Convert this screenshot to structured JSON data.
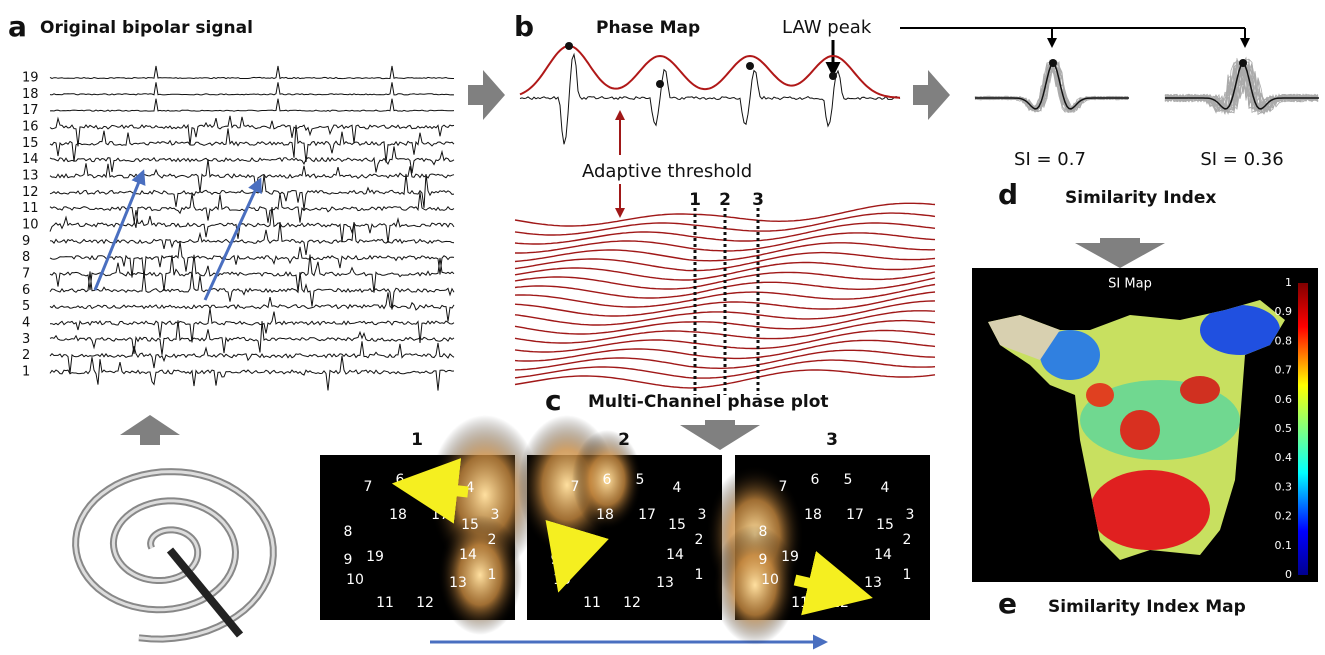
{
  "panel_a": {
    "label": "a",
    "title": "Original bipolar signal",
    "channels": [
      "19",
      "18",
      "17",
      "16",
      "15",
      "14",
      "13",
      "12",
      "11",
      "10",
      "9",
      "8",
      "7",
      "6",
      "5",
      "4",
      "3",
      "2",
      "1"
    ]
  },
  "panel_b": {
    "label": "b",
    "title": "Phase Map",
    "law_peak": "LAW peak",
    "threshold": "Adaptive threshold",
    "cut_labels": [
      "1",
      "2",
      "3"
    ],
    "si_values": [
      "SI = 0.7",
      "SI = 0.36"
    ]
  },
  "panel_c": {
    "label": "c",
    "title": "Multi-Channel phase plot",
    "frames": [
      "1",
      "2",
      "3"
    ],
    "electrodes": [
      "7",
      "6",
      "5",
      "4",
      "18",
      "17",
      "3",
      "15",
      "8",
      "2",
      "14",
      "9",
      "19",
      "1",
      "10",
      "13",
      "11",
      "12"
    ]
  },
  "panel_d": {
    "label": "d",
    "title": "Similarity Index"
  },
  "panel_e": {
    "label": "e",
    "title": "Similarity Index Map",
    "map_title": "SI Map",
    "colorbar_ticks": [
      "1",
      "0.9",
      "0.8",
      "0.7",
      "0.6",
      "0.5",
      "0.4",
      "0.3",
      "0.2",
      "0.1",
      "0"
    ]
  }
}
